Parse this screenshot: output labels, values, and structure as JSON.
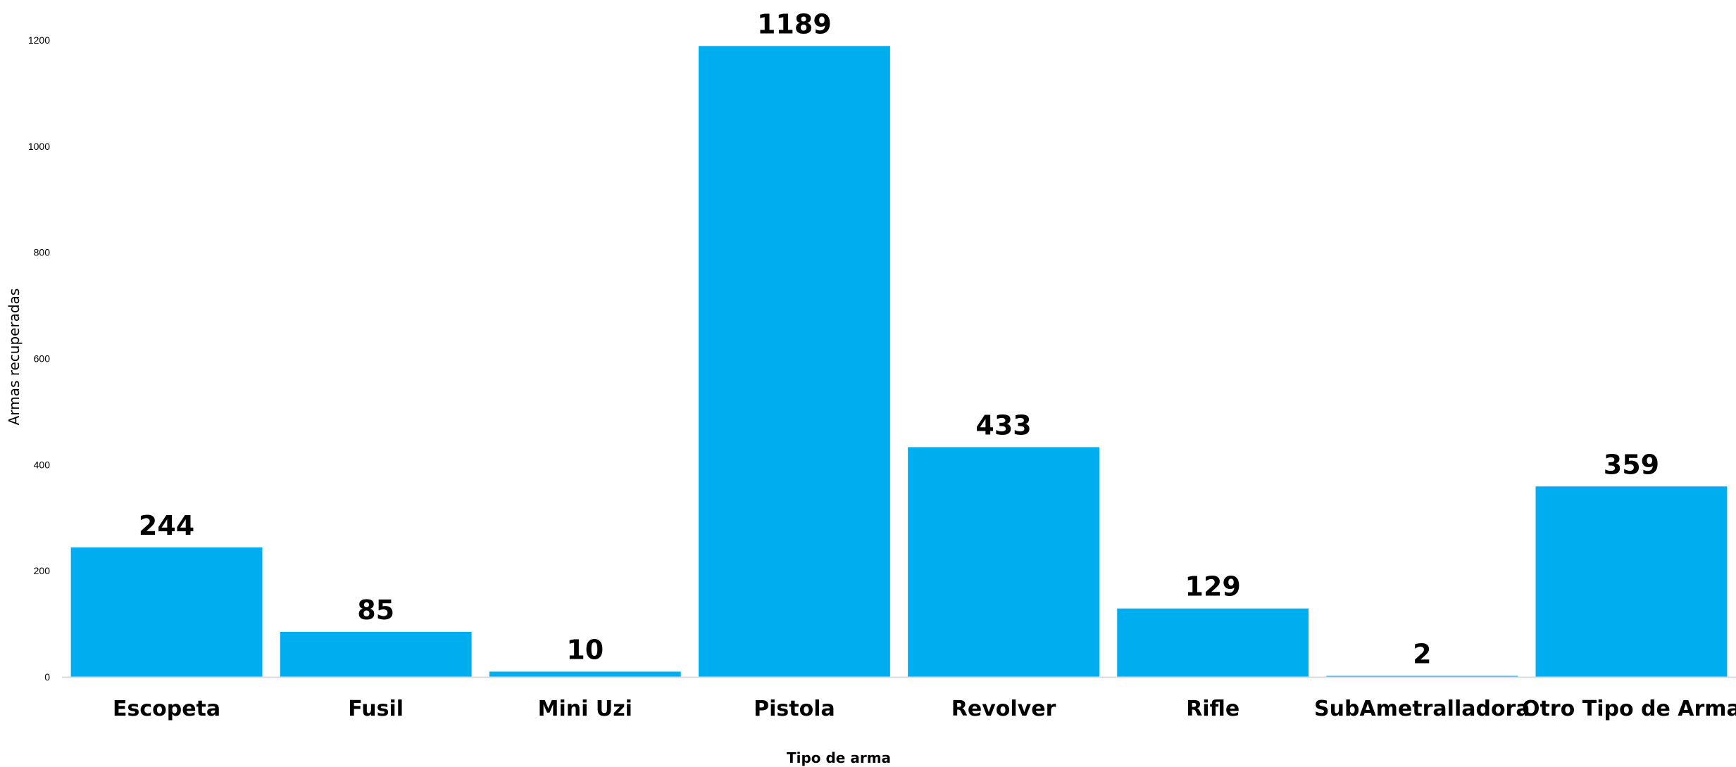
{
  "chart_data": {
    "type": "bar",
    "title": "",
    "xlabel": "Tipo de arma",
    "ylabel": "Armas recuperadas",
    "categories": [
      "Escopeta",
      "Fusil",
      "Mini Uzi",
      "Pistola",
      "Revolver",
      "Rifle",
      "SubAmetralladora",
      "Otro Tipo de Arma"
    ],
    "values": [
      244,
      85,
      10,
      1189,
      433,
      129,
      2,
      359
    ],
    "ylim": [
      0,
      1200
    ],
    "yticks": [
      0,
      200,
      400,
      600,
      800,
      1000,
      1200
    ],
    "grid": false,
    "legend": "none",
    "bar_color": "#00AEEF",
    "axis_color": "#D9D9D9"
  }
}
